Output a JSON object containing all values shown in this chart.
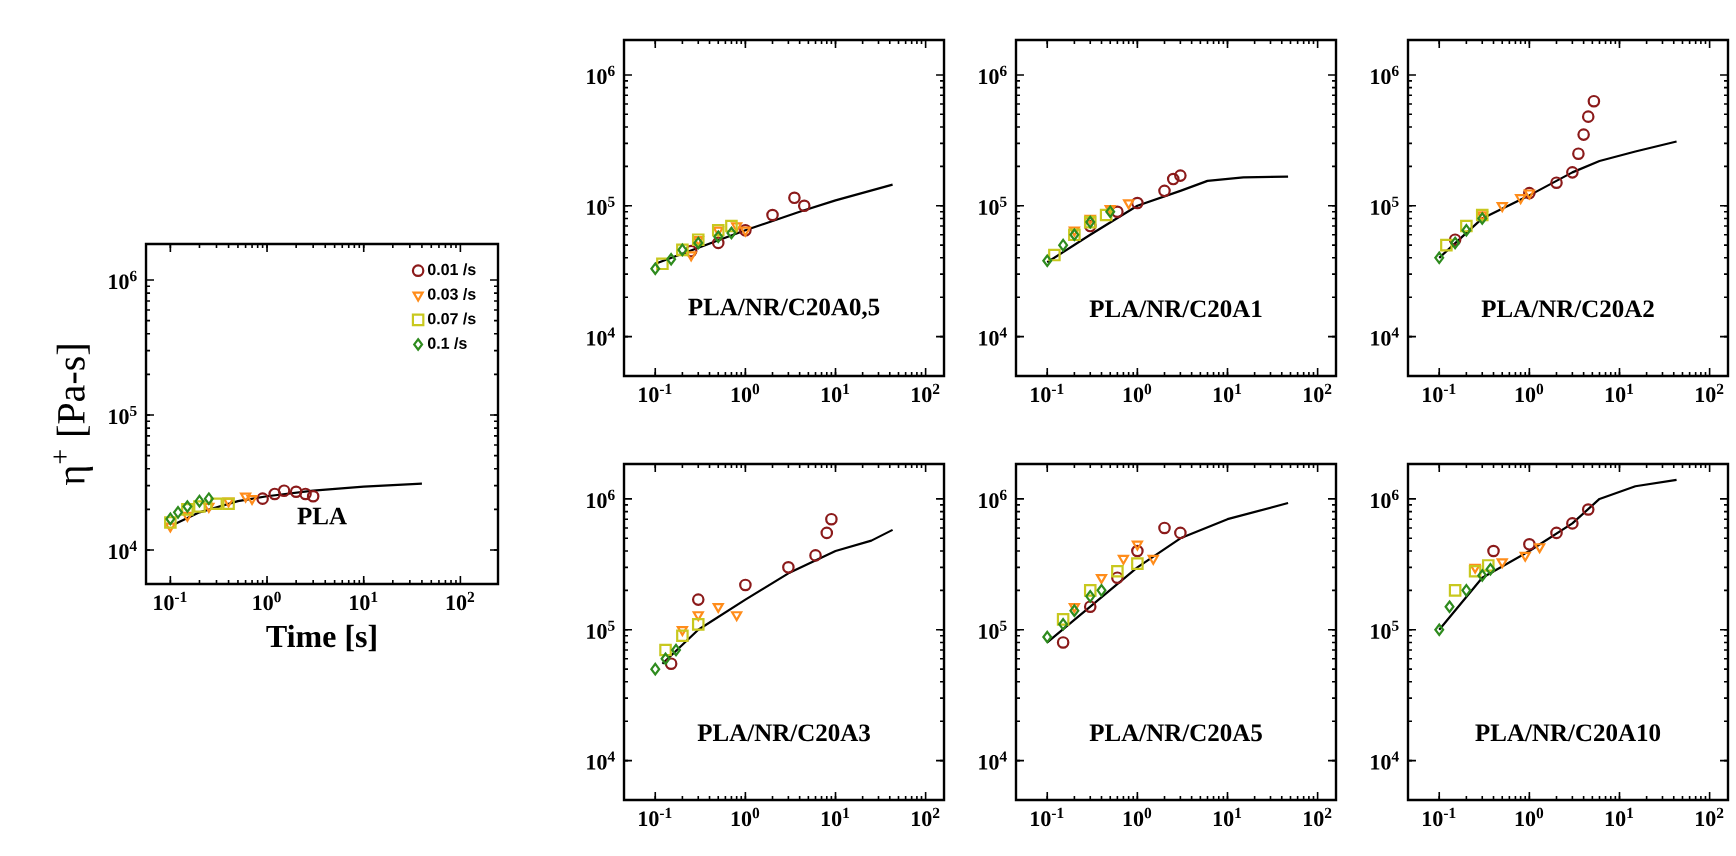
{
  "chart_data": [
    {
      "type": "scatter",
      "title": "PLA",
      "xlabel": "Time [s]",
      "ylabel": "η$^{+}$ [Pa-s]",
      "log": "xy",
      "legend": "top right",
      "xlim": [
        0.056,
        245
      ],
      "ylim": [
        5600,
        1850000
      ],
      "xticks": [
        {
          "value": 0.1,
          "label": "10$^{-1}$"
        },
        {
          "value": 1,
          "label": "10$^{0}$"
        },
        {
          "value": 10,
          "label": "10$^{1}$"
        },
        {
          "value": 100,
          "label": "10$^{2}$"
        }
      ],
      "yticks": [
        {
          "value": 10000,
          "label": "10$^{4}$"
        },
        {
          "value": 100000,
          "label": "10$^{5}$"
        },
        {
          "value": 1000000,
          "label": "10$^{6}$"
        }
      ],
      "series": [
        {
          "type": "line",
          "marker": "none",
          "color": "#000000",
          "x": [
            0.11,
            0.2,
            0.5,
            1,
            3,
            10,
            40
          ],
          "values": [
            15500,
            19000,
            23000,
            25000,
            27500,
            29500,
            31000
          ]
        },
        {
          "name": "0.01 /s",
          "marker": "circle",
          "color": "#8b1a1a",
          "x": [
            0.9,
            1.2,
            1.5,
            2,
            2.5,
            3
          ],
          "values": [
            24000,
            26000,
            27500,
            27000,
            26000,
            25000
          ]
        },
        {
          "name": "0.03 /s",
          "marker": "triangle",
          "color": "#ff8c1a",
          "x": [
            0.1,
            0.15,
            0.25,
            0.4,
            0.6,
            0.7
          ],
          "values": [
            15000,
            18000,
            21000,
            23000,
            25000,
            24000
          ]
        },
        {
          "name": "0.07 /s",
          "marker": "square",
          "color": "#c8c81e",
          "x": [
            0.1,
            0.15,
            0.2,
            0.3,
            0.4
          ],
          "values": [
            16000,
            20000,
            21000,
            22000,
            22000
          ]
        },
        {
          "name": "0.1 /s",
          "marker": "diamond",
          "color": "#2e8b1e",
          "x": [
            0.1,
            0.12,
            0.15,
            0.2,
            0.25
          ],
          "values": [
            17000,
            19000,
            21000,
            23000,
            24000
          ]
        }
      ]
    },
    {
      "type": "scatter",
      "title": "PLA/NR/C20A0,5",
      "log": "xy",
      "xlim": [
        0.045,
        160
      ],
      "ylim": [
        5000,
        1850000
      ],
      "xticks": [
        {
          "value": 0.1,
          "label": "10$^{-1}$"
        },
        {
          "value": 1,
          "label": "10$^{0}$"
        },
        {
          "value": 10,
          "label": "10$^{1}$"
        },
        {
          "value": 100,
          "label": "10$^{2}$"
        }
      ],
      "yticks": [
        {
          "value": 10000,
          "label": "10$^{4}$"
        },
        {
          "value": 100000,
          "label": "10$^{5}$"
        },
        {
          "value": 1000000,
          "label": "10$^{6}$"
        }
      ],
      "series": [
        {
          "type": "line",
          "marker": "none",
          "color": "#000000",
          "x": [
            0.1,
            1,
            4,
            10,
            43
          ],
          "values": [
            36000,
            65000,
            90000,
            110000,
            145000
          ]
        },
        {
          "marker": "circle",
          "color": "#8b1a1a",
          "x": [
            0.25,
            0.5,
            1,
            2,
            3.5,
            4.5
          ],
          "values": [
            45000,
            52000,
            65000,
            85000,
            115000,
            100000
          ]
        },
        {
          "marker": "triangle",
          "color": "#ff8c1a",
          "x": [
            0.25,
            0.3,
            0.5,
            0.8,
            1
          ],
          "values": [
            42000,
            55000,
            65000,
            70000,
            65000
          ]
        },
        {
          "marker": "square",
          "color": "#c8c81e",
          "x": [
            0.12,
            0.2,
            0.3,
            0.5,
            0.7
          ],
          "values": [
            36000,
            46000,
            55000,
            65000,
            70000
          ]
        },
        {
          "marker": "diamond",
          "color": "#2e8b1e",
          "x": [
            0.1,
            0.15,
            0.2,
            0.3,
            0.5,
            0.7
          ],
          "values": [
            33000,
            39000,
            46000,
            52000,
            58000,
            62000
          ]
        }
      ]
    },
    {
      "type": "scatter",
      "title": "PLA/NR/C20A1",
      "log": "xy",
      "xlim": [
        0.045,
        160
      ],
      "ylim": [
        5000,
        1850000
      ],
      "xticks": [
        {
          "value": 0.1,
          "label": "10$^{-1}$"
        },
        {
          "value": 1,
          "label": "10$^{0}$"
        },
        {
          "value": 10,
          "label": "10$^{1}$"
        },
        {
          "value": 100,
          "label": "10$^{2}$"
        }
      ],
      "yticks": [
        {
          "value": 10000,
          "label": "10$^{4}$"
        },
        {
          "value": 100000,
          "label": "10$^{5}$"
        },
        {
          "value": 1000000,
          "label": "10$^{6}$"
        }
      ],
      "series": [
        {
          "type": "line",
          "marker": "none",
          "color": "#000000",
          "x": [
            0.1,
            0.3,
            1,
            3,
            6,
            15,
            47
          ],
          "values": [
            37000,
            60000,
            100000,
            130000,
            155000,
            165000,
            167000
          ]
        },
        {
          "marker": "circle",
          "color": "#8b1a1a",
          "x": [
            0.3,
            0.6,
            1,
            2,
            2.5,
            3
          ],
          "values": [
            70000,
            90000,
            105000,
            130000,
            160000,
            170000
          ]
        },
        {
          "marker": "triangle",
          "color": "#ff8c1a",
          "x": [
            0.2,
            0.3,
            0.5,
            0.8
          ],
          "values": [
            65000,
            80000,
            95000,
            105000
          ]
        },
        {
          "marker": "square",
          "color": "#c8c81e",
          "x": [
            0.12,
            0.2,
            0.3,
            0.45
          ],
          "values": [
            42000,
            60000,
            75000,
            85000
          ]
        },
        {
          "marker": "diamond",
          "color": "#2e8b1e",
          "x": [
            0.1,
            0.15,
            0.2,
            0.3,
            0.5
          ],
          "values": [
            38000,
            50000,
            60000,
            75000,
            90000
          ]
        }
      ]
    },
    {
      "type": "scatter",
      "title": "PLA/NR/C20A2",
      "log": "xy",
      "xlim": [
        0.045,
        160
      ],
      "ylim": [
        5000,
        1850000
      ],
      "xticks": [
        {
          "value": 0.1,
          "label": "10$^{-1}$"
        },
        {
          "value": 1,
          "label": "10$^{0}$"
        },
        {
          "value": 10,
          "label": "10$^{1}$"
        },
        {
          "value": 100,
          "label": "10$^{2}$"
        }
      ],
      "yticks": [
        {
          "value": 10000,
          "label": "10$^{4}$"
        },
        {
          "value": 100000,
          "label": "10$^{5}$"
        },
        {
          "value": 1000000,
          "label": "10$^{6}$"
        }
      ],
      "series": [
        {
          "type": "line",
          "marker": "none",
          "color": "#000000",
          "x": [
            0.1,
            0.3,
            1,
            3,
            6,
            15,
            43
          ],
          "values": [
            40000,
            80000,
            120000,
            180000,
            220000,
            260000,
            310000
          ]
        },
        {
          "marker": "circle",
          "color": "#8b1a1a",
          "x": [
            0.15,
            1,
            2,
            3,
            3.5,
            4,
            4.5,
            5.2
          ],
          "values": [
            55000,
            125000,
            150000,
            180000,
            250000,
            350000,
            480000,
            630000
          ]
        },
        {
          "marker": "triangle",
          "color": "#ff8c1a",
          "x": [
            0.3,
            0.5,
            0.8,
            1
          ],
          "values": [
            85000,
            100000,
            115000,
            125000
          ]
        },
        {
          "marker": "square",
          "color": "#c8c81e",
          "x": [
            0.12,
            0.2,
            0.3
          ],
          "values": [
            50000,
            70000,
            85000
          ]
        },
        {
          "marker": "diamond",
          "color": "#2e8b1e",
          "x": [
            0.1,
            0.15,
            0.2,
            0.3
          ],
          "values": [
            40000,
            52000,
            65000,
            80000
          ]
        }
      ]
    },
    {
      "type": "scatter",
      "title": "PLA/NR/C20A3",
      "log": "xy",
      "xlim": [
        0.045,
        160
      ],
      "ylim": [
        5000,
        1850000
      ],
      "xticks": [
        {
          "value": 0.1,
          "label": "10$^{-1}$"
        },
        {
          "value": 1,
          "label": "10$^{0}$"
        },
        {
          "value": 10,
          "label": "10$^{1}$"
        },
        {
          "value": 100,
          "label": "10$^{2}$"
        }
      ],
      "yticks": [
        {
          "value": 10000,
          "label": "10$^{4}$"
        },
        {
          "value": 100000,
          "label": "10$^{5}$"
        },
        {
          "value": 1000000,
          "label": "10$^{6}$"
        }
      ],
      "series": [
        {
          "type": "line",
          "marker": "none",
          "color": "#000000",
          "x": [
            0.12,
            0.3,
            1,
            3,
            10,
            25,
            43
          ],
          "values": [
            55000,
            100000,
            170000,
            270000,
            400000,
            480000,
            580000
          ]
        },
        {
          "marker": "circle",
          "color": "#8b1a1a",
          "x": [
            0.15,
            0.3,
            1,
            3,
            6,
            8,
            9
          ],
          "values": [
            55000,
            170000,
            220000,
            300000,
            370000,
            550000,
            700000
          ]
        },
        {
          "marker": "triangle",
          "color": "#ff8c1a",
          "x": [
            0.2,
            0.3,
            0.5,
            0.8
          ],
          "values": [
            100000,
            130000,
            150000,
            130000
          ]
        },
        {
          "marker": "square",
          "color": "#c8c81e",
          "x": [
            0.13,
            0.2,
            0.3
          ],
          "values": [
            70000,
            90000,
            110000
          ]
        },
        {
          "marker": "diamond",
          "color": "#2e8b1e",
          "x": [
            0.1,
            0.13,
            0.17
          ],
          "values": [
            50000,
            60000,
            70000
          ]
        }
      ]
    },
    {
      "type": "scatter",
      "title": "PLA/NR/C20A5",
      "log": "xy",
      "xlim": [
        0.045,
        160
      ],
      "ylim": [
        5000,
        1850000
      ],
      "xticks": [
        {
          "value": 0.1,
          "label": "10$^{-1}$"
        },
        {
          "value": 1,
          "label": "10$^{0}$"
        },
        {
          "value": 10,
          "label": "10$^{1}$"
        },
        {
          "value": 100,
          "label": "10$^{2}$"
        }
      ],
      "yticks": [
        {
          "value": 10000,
          "label": "10$^{4}$"
        },
        {
          "value": 100000,
          "label": "10$^{5}$"
        },
        {
          "value": 1000000,
          "label": "10$^{6}$"
        }
      ],
      "series": [
        {
          "type": "line",
          "marker": "none",
          "color": "#000000",
          "x": [
            0.1,
            0.3,
            1,
            3,
            10,
            47
          ],
          "values": [
            80000,
            150000,
            300000,
            500000,
            700000,
            930000
          ]
        },
        {
          "marker": "circle",
          "color": "#8b1a1a",
          "x": [
            0.15,
            0.3,
            0.6,
            1,
            2,
            3
          ],
          "values": [
            80000,
            150000,
            250000,
            400000,
            600000,
            550000
          ]
        },
        {
          "marker": "triangle",
          "color": "#ff8c1a",
          "x": [
            0.2,
            0.4,
            0.7,
            1,
            1.5
          ],
          "values": [
            150000,
            250000,
            350000,
            450000,
            350000
          ]
        },
        {
          "marker": "square",
          "color": "#c8c81e",
          "x": [
            0.15,
            0.3,
            0.6,
            1
          ],
          "values": [
            120000,
            200000,
            280000,
            320000
          ]
        },
        {
          "marker": "diamond",
          "color": "#2e8b1e",
          "x": [
            0.1,
            0.15,
            0.2,
            0.3,
            0.4
          ],
          "values": [
            88000,
            110000,
            140000,
            180000,
            200000
          ]
        }
      ]
    },
    {
      "type": "scatter",
      "title": "PLA/NR/C20A10",
      "log": "xy",
      "xlim": [
        0.045,
        160
      ],
      "ylim": [
        5000,
        1850000
      ],
      "xticks": [
        {
          "value": 0.1,
          "label": "10$^{-1}$"
        },
        {
          "value": 1,
          "label": "10$^{0}$"
        },
        {
          "value": 10,
          "label": "10$^{1}$"
        },
        {
          "value": 100,
          "label": "10$^{2}$"
        }
      ],
      "yticks": [
        {
          "value": 10000,
          "label": "10$^{4}$"
        },
        {
          "value": 100000,
          "label": "10$^{5}$"
        },
        {
          "value": 1000000,
          "label": "10$^{6}$"
        }
      ],
      "series": [
        {
          "type": "line",
          "marker": "none",
          "color": "#000000",
          "x": [
            0.1,
            0.3,
            1,
            3,
            6,
            15,
            43
          ],
          "values": [
            100000,
            250000,
            400000,
            650000,
            1000000,
            1250000,
            1400000
          ]
        },
        {
          "marker": "circle",
          "color": "#8b1a1a",
          "x": [
            0.4,
            1,
            2,
            3,
            4.5
          ],
          "values": [
            400000,
            450000,
            550000,
            650000,
            830000
          ]
        },
        {
          "marker": "triangle",
          "color": "#ff8c1a",
          "x": [
            0.25,
            0.5,
            0.9,
            1.3
          ],
          "values": [
            300000,
            330000,
            370000,
            430000
          ]
        },
        {
          "marker": "square",
          "color": "#c8c81e",
          "x": [
            0.15,
            0.25,
            0.35
          ],
          "values": [
            200000,
            280000,
            310000
          ]
        },
        {
          "marker": "diamond",
          "color": "#2e8b1e",
          "x": [
            0.1,
            0.13,
            0.2,
            0.3,
            0.37
          ],
          "values": [
            100000,
            150000,
            200000,
            260000,
            290000
          ]
        }
      ]
    }
  ]
}
